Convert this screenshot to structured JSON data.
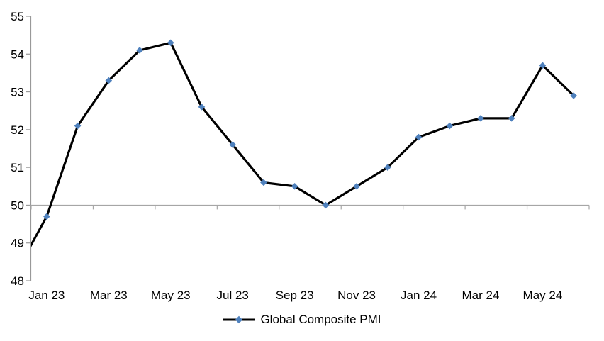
{
  "chart_data": {
    "type": "line",
    "title": "",
    "categories": [
      "Dec 22",
      "Jan 23",
      "Feb 23",
      "Mar 23",
      "Apr 23",
      "May 23",
      "Jun 23",
      "Jul 23",
      "Aug 23",
      "Sep 23",
      "Oct 23",
      "Nov 23",
      "Dec 23",
      "Jan 24",
      "Feb 24",
      "Mar 24",
      "Apr 24",
      "May 24",
      "Jun 24"
    ],
    "series": [
      {
        "name": "Global Composite PMI",
        "values": [
          48.2,
          49.7,
          52.1,
          53.3,
          54.1,
          54.3,
          52.6,
          51.6,
          50.6,
          50.5,
          50.0,
          50.5,
          51.0,
          51.8,
          52.1,
          52.3,
          52.3,
          53.7,
          52.9
        ]
      }
    ],
    "x_axis": {
      "tick_labels": [
        "Jan 23",
        "Mar 23",
        "May 23",
        "Jul 23",
        "Sep 23",
        "Nov 23",
        "Jan 24",
        "Mar 24",
        "May 24"
      ],
      "axis_line_at_value": 50,
      "tick_interval_months": 2,
      "first_point_clipped_by_axis": true
    },
    "y_axis": {
      "ticks": [
        48,
        49,
        50,
        51,
        52,
        53,
        54,
        55
      ],
      "min": 48,
      "max": 55
    },
    "legend": {
      "label": "Global Composite PMI",
      "position": "bottom"
    },
    "colors": {
      "line": "#000000",
      "marker": "#4F81BD",
      "axis": "#999999",
      "text": "#000000"
    },
    "grid": "off"
  }
}
